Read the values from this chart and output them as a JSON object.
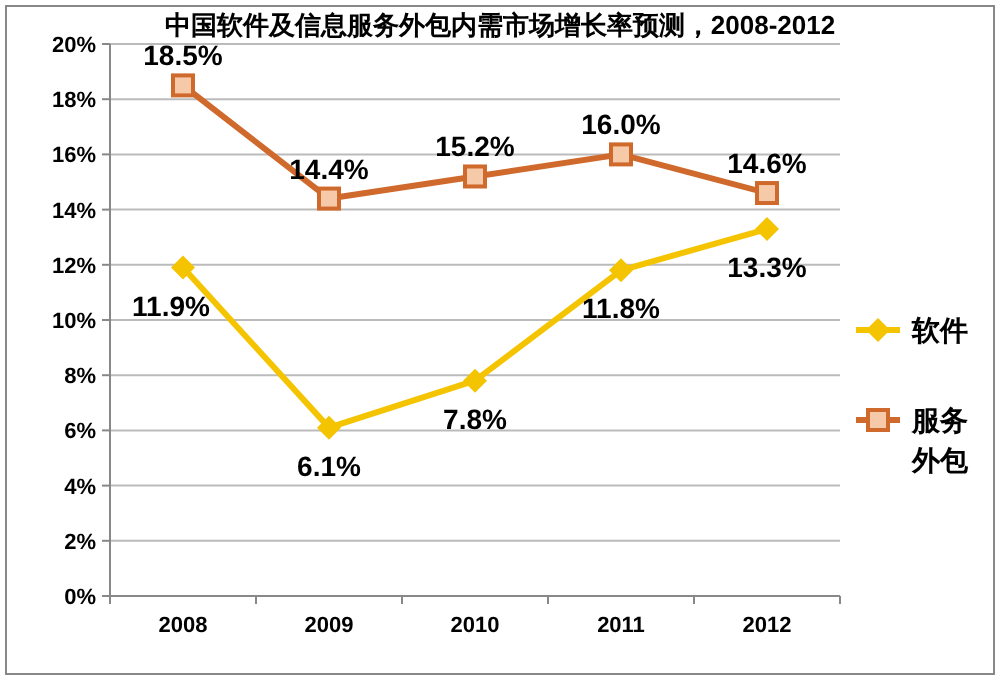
{
  "chart_data": {
    "type": "line",
    "title": "中国软件及信息服务外包内需市场增长率预测，2008-2012",
    "categories": [
      "2008",
      "2009",
      "2010",
      "2011",
      "2012"
    ],
    "series": [
      {
        "name": "软件",
        "color": "#f5c400",
        "values": [
          11.9,
          6.1,
          7.8,
          11.8,
          13.3
        ],
        "value_labels": [
          "11.9%",
          "6.1%",
          "7.8%",
          "11.8%",
          "13.3%"
        ],
        "marker": "diamond"
      },
      {
        "name": "服务外包",
        "color": "#d0692c",
        "values": [
          18.5,
          14.4,
          15.2,
          16.0,
          14.6
        ],
        "value_labels": [
          "18.5%",
          "14.4%",
          "15.2%",
          "16.0%",
          "14.6%"
        ],
        "marker": "square"
      }
    ],
    "ylim": [
      0,
      20
    ],
    "yticks": [
      {
        "value": 0,
        "label": "0%"
      },
      {
        "value": 2,
        "label": "2%"
      },
      {
        "value": 4,
        "label": "4%"
      },
      {
        "value": 6,
        "label": "6%"
      },
      {
        "value": 8,
        "label": "8%"
      },
      {
        "value": 10,
        "label": "10%"
      },
      {
        "value": 12,
        "label": "12%"
      },
      {
        "value": 14,
        "label": "14%"
      },
      {
        "value": 16,
        "label": "16%"
      },
      {
        "value": 18,
        "label": "18%"
      },
      {
        "value": 20,
        "label": "20%"
      }
    ],
    "grid": "y",
    "legend": "right",
    "line_style": "solid"
  }
}
